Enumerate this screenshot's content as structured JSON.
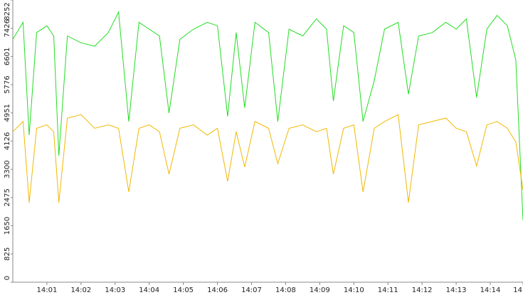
{
  "chart_data": {
    "type": "line",
    "x": [
      0,
      0.3,
      0.48,
      0.7,
      1.0,
      1.2,
      1.35,
      1.6,
      2.0,
      2.4,
      2.8,
      3.1,
      3.4,
      3.7,
      4.0,
      4.3,
      4.58,
      4.9,
      5.3,
      5.7,
      6.0,
      6.3,
      6.55,
      6.8,
      7.1,
      7.5,
      7.77,
      8.1,
      8.5,
      8.9,
      9.2,
      9.4,
      9.7,
      10.0,
      10.27,
      10.6,
      10.9,
      11.3,
      11.6,
      11.9,
      12.3,
      12.7,
      13.0,
      13.3,
      13.6,
      13.9,
      14.2,
      14.5,
      14.75,
      14.96
    ],
    "series": [
      {
        "color": "#22dd22",
        "values": [
          7100,
          7600,
          4300,
          7300,
          7500,
          7200,
          3700,
          7200,
          7000,
          6900,
          7300,
          7900,
          4700,
          7600,
          7400,
          7200,
          4950,
          7100,
          7400,
          7600,
          7500,
          4850,
          7300,
          5100,
          7600,
          7300,
          4700,
          7400,
          7200,
          7700,
          7400,
          5300,
          7500,
          7300,
          4700,
          5900,
          7400,
          7600,
          5500,
          7200,
          7300,
          7600,
          7400,
          7700,
          5400,
          7400,
          7800,
          7500,
          6500,
          1810
        ]
      },
      {
        "color": "#f2b800",
        "values": [
          4400,
          4700,
          2330,
          4500,
          4600,
          4400,
          2330,
          4800,
          4900,
          4500,
          4600,
          4500,
          2640,
          4500,
          4600,
          4400,
          3160,
          4500,
          4600,
          4300,
          4500,
          2950,
          4400,
          3370,
          4700,
          4500,
          3470,
          4500,
          4600,
          4400,
          4500,
          3160,
          4500,
          4600,
          2640,
          4500,
          4700,
          4900,
          2330,
          4600,
          4700,
          4800,
          4500,
          4400,
          3400,
          4600,
          4700,
          4500,
          4100,
          2700
        ]
      }
    ],
    "xlim": [
      0,
      14.96
    ],
    "xticks": [
      {
        "value": 1,
        "label": "14:01"
      },
      {
        "value": 2,
        "label": "14:02"
      },
      {
        "value": 3,
        "label": "14:03"
      },
      {
        "value": 4,
        "label": "14:04"
      },
      {
        "value": 5,
        "label": "14:05"
      },
      {
        "value": 6,
        "label": "14:06"
      },
      {
        "value": 7,
        "label": "14:07"
      },
      {
        "value": 8,
        "label": "14:08"
      },
      {
        "value": 9,
        "label": "14:09"
      },
      {
        "value": 10,
        "label": "14:10"
      },
      {
        "value": 11,
        "label": "14:11"
      },
      {
        "value": 12,
        "label": "14:12"
      },
      {
        "value": 13,
        "label": "14:13"
      },
      {
        "value": 14,
        "label": "14:14"
      },
      {
        "value": 14.96,
        "label": "14"
      }
    ],
    "ylim": [
      0,
      8252
    ],
    "yticks": [
      0,
      825,
      1650,
      2475,
      3300,
      4126,
      4951,
      5776,
      6601,
      7426,
      8252
    ]
  }
}
